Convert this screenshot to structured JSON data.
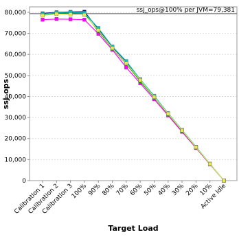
{
  "chart_data": {
    "type": "line",
    "x_label": "Target Load",
    "y_label": "ssj_ops",
    "annotation": "ssj_ops@100% per JVM=79,381",
    "reference_value": 79381,
    "categories": [
      "Calibration 1",
      "Calibration 2",
      "Calibration 3",
      "100%",
      "90%",
      "80%",
      "70%",
      "60%",
      "50%",
      "40%",
      "30%",
      "20%",
      "10%",
      "Active Idle"
    ],
    "series": [
      {
        "color": "#ff00ff",
        "values": [
          76500,
          76800,
          76700,
          76500,
          69800,
          62200,
          53800,
          46300,
          38700,
          31000,
          23200,
          15500,
          7700,
          0
        ]
      },
      {
        "color": "#000080",
        "values": [
          79500,
          80000,
          80200,
          80300,
          72000,
          63500,
          56500,
          48000,
          40200,
          32000,
          24000,
          16000,
          8000,
          0
        ]
      },
      {
        "color": "#00a000",
        "values": [
          79000,
          79500,
          79800,
          79400,
          71000,
          62800,
          55500,
          47200,
          39500,
          31600,
          23700,
          15800,
          7900,
          0
        ]
      },
      {
        "color": "#00c8c8",
        "values": [
          79200,
          79800,
          80000,
          79700,
          72500,
          63800,
          56800,
          48200,
          40300,
          32000,
          24100,
          16100,
          8000,
          0
        ]
      },
      {
        "color": "#e8e850",
        "values": [
          78500,
          79200,
          79000,
          78800,
          71500,
          63000,
          55800,
          47800,
          39800,
          31800,
          23900,
          15900,
          7950,
          0
        ]
      }
    ],
    "ylim": [
      0,
      82600
    ],
    "yticks": [
      0,
      {
        "value": 10000,
        "label": "10,000"
      },
      {
        "value": 20000,
        "label": "20,000"
      },
      {
        "value": 30000,
        "label": "30,000"
      },
      {
        "value": 40000,
        "label": "40,000"
      },
      {
        "value": 50000,
        "label": "50,000"
      },
      {
        "value": 60000,
        "label": "60,000"
      },
      {
        "value": 70000,
        "label": "70,000"
      },
      {
        "value": 80000,
        "label": "80,000"
      }
    ],
    "grid": true
  }
}
